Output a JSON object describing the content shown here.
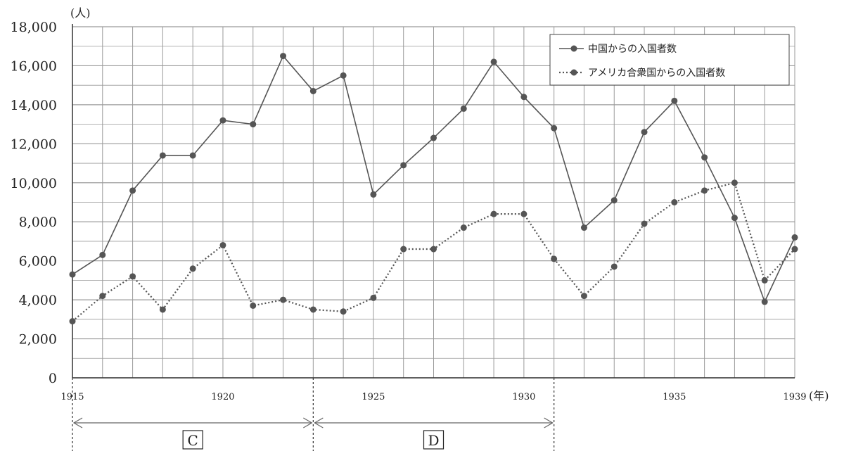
{
  "chart_data": {
    "type": "line",
    "title": "",
    "xlabel": "(年)",
    "ylabel": "(人)",
    "ylim": [
      0,
      18000
    ],
    "xlim": [
      1915,
      1939
    ],
    "yticks": [
      "0",
      "2,000",
      "4,000",
      "6,000",
      "8,000",
      "10,000",
      "12,000",
      "14,000",
      "16,000",
      "18,000"
    ],
    "xticks": [
      "1915",
      "1920",
      "1925",
      "1930",
      "1935",
      "1939"
    ],
    "grid": true,
    "legend_position": "top-right",
    "x": [
      1915,
      1916,
      1917,
      1918,
      1919,
      1920,
      1921,
      1922,
      1923,
      1924,
      1925,
      1926,
      1927,
      1928,
      1929,
      1930,
      1931,
      1932,
      1933,
      1934,
      1935,
      1936,
      1937,
      1938,
      1939
    ],
    "series": [
      {
        "name": "中国からの入国者数",
        "style": "solid",
        "color": "#555555",
        "values": [
          5300,
          6300,
          9600,
          11400,
          11400,
          13200,
          13000,
          16500,
          14700,
          15500,
          9400,
          10900,
          12300,
          13800,
          16200,
          14400,
          12800,
          7700,
          9100,
          12600,
          14200,
          11300,
          8200,
          3900,
          7200
        ]
      },
      {
        "name": "アメリカ合衆国からの入国者数",
        "style": "dotted",
        "color": "#555555",
        "values": [
          2900,
          4200,
          5200,
          3500,
          5600,
          6800,
          3700,
          4000,
          3500,
          3400,
          4100,
          6600,
          6600,
          7700,
          8400,
          8400,
          6100,
          4200,
          5700,
          7900,
          9000,
          9600,
          10000,
          5000,
          6600
        ]
      }
    ],
    "annotations": {
      "periods": [
        {
          "label": "C",
          "start": 1915,
          "end": 1923
        },
        {
          "label": "D",
          "start": 1923,
          "end": 1931
        }
      ]
    }
  }
}
